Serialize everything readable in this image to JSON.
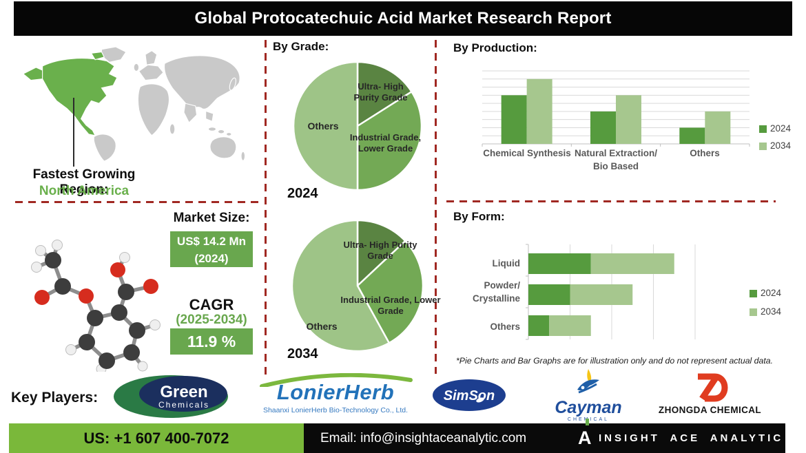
{
  "title": "Global Protocatechuic Acid Market Research Report",
  "region": {
    "label": "Fastest Growing Region:",
    "value": "North America"
  },
  "market": {
    "size_label": "Market Size:",
    "size_value": "US$ 14.2 Mn",
    "size_year": "(2024)",
    "cagr_label": "CAGR",
    "cagr_period": "(2025-2034)",
    "cagr_value": "11.9 %"
  },
  "sections": {
    "grade_heading": "By Grade:",
    "production_heading": "By Production:",
    "form_heading": "By Form:",
    "pie1_year": "2024",
    "pie2_year": "2034",
    "footnote": "*Pie Charts and Bar Graphs are for illustration only and do not represent actual data."
  },
  "chart_data": [
    {
      "type": "pie",
      "title": "By Grade: 2024",
      "labels": [
        "Ultra- High Purity Grade",
        "Industrial Grade, Lower Grade",
        "Others"
      ],
      "values": [
        16,
        34,
        50
      ],
      "colors": [
        "#5a8442",
        "#73a955",
        "#9ec487"
      ],
      "legend_position": "none"
    },
    {
      "type": "pie",
      "title": "By Grade: 2034",
      "labels": [
        "Ultra- High Purity Grade",
        "Industrial Grade, Lower Grade",
        "Others"
      ],
      "values": [
        13,
        29,
        58
      ],
      "colors": [
        "#5a8442",
        "#73a955",
        "#9ec487"
      ],
      "legend_position": "none"
    },
    {
      "type": "bar",
      "title": "By Production",
      "categories": [
        "Chemical Synthesis",
        "Natural Extraction/ Bio Based",
        "Others"
      ],
      "series": [
        {
          "name": "2024",
          "color": "#569b3e",
          "values": [
            6,
            4,
            2
          ]
        },
        {
          "name": "2034",
          "color": "#a6c78e",
          "values": [
            8,
            6,
            4
          ]
        }
      ],
      "ylim": [
        0,
        9
      ],
      "grid": "horizontal",
      "legend_position": "right"
    },
    {
      "type": "bar-horizontal-stacked",
      "title": "By Form",
      "categories": [
        "Liquid",
        "Powder/ Crystalline",
        "Others"
      ],
      "series": [
        {
          "name": "2024",
          "color": "#569b3e",
          "values": [
            1.5,
            1,
            0.5
          ]
        },
        {
          "name": "2034",
          "color": "#a6c78e",
          "values": [
            2,
            1.5,
            1
          ]
        }
      ],
      "xlim": [
        0,
        4
      ],
      "grid": "vertical",
      "legend_position": "right"
    }
  ],
  "key_players": {
    "label": "Key Players:",
    "logos": [
      {
        "name": "Green Chemicals",
        "line1": "Green",
        "line2": "Chemicals"
      },
      {
        "name": "LonierHerb",
        "text": "LonierHerb",
        "subtitle": "Shaanxi LonierHerb Bio-Technology Co., Ltd."
      },
      {
        "name": "SimSon",
        "text": "SimSon"
      },
      {
        "name": "Cayman Chemical",
        "text": "Cayman",
        "subtitle": "CHEMICAL"
      },
      {
        "name": "Zhongda Chemical",
        "text": "ZHONGDA CHEMICAL"
      }
    ]
  },
  "footer": {
    "phone": "US: +1 607 400-7072",
    "email": "Email: info@insightaceanalytic.com",
    "brand": "INSIGHT ACE ANALYTIC"
  },
  "colors": {
    "divider_red": "#a02822",
    "series_2024": "#569b3e",
    "series_2034": "#a6c78e",
    "pie_dark": "#5a8442",
    "pie_mid": "#73a955",
    "pie_light": "#9ec487",
    "map_highlight": "#6ab04c",
    "map_gray": "#c9c9c9",
    "footer_green": "#7ab83a",
    "value_box_green": "#69a74e",
    "region_green": "#6ab04c"
  }
}
